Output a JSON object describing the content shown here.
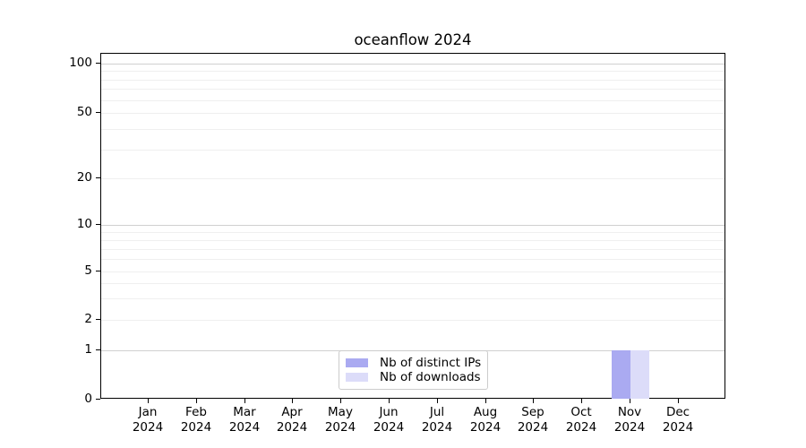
{
  "title": "oceanflow 2024",
  "colors": {
    "bar_distinct_ips": "#aaaaf1",
    "bar_downloads": "#dcdcf9",
    "grid_major": "#d0d0d0",
    "grid_minor": "#efefef",
    "spine": "#000000",
    "text": "#000000",
    "legend_border": "#cccccc"
  },
  "chart_data": {
    "type": "bar",
    "title": "oceanflow 2024",
    "categories": [
      "Jan 2024",
      "Feb 2024",
      "Mar 2024",
      "Apr 2024",
      "May 2024",
      "Jun 2024",
      "Jul 2024",
      "Aug 2024",
      "Sep 2024",
      "Oct 2024",
      "Nov 2024",
      "Dec 2024"
    ],
    "series": [
      {
        "name": "Nb of distinct IPs",
        "color": "#aaaaf1",
        "values": [
          0,
          0,
          0,
          0,
          0,
          0,
          0,
          0,
          0,
          0,
          1,
          0
        ]
      },
      {
        "name": "Nb of downloads",
        "color": "#dcdcf9",
        "values": [
          0,
          0,
          0,
          0,
          0,
          0,
          0,
          0,
          0,
          0,
          1,
          0
        ]
      }
    ],
    "xlabel": "",
    "ylabel": "",
    "yscale": "log-like (linear 0-1, compressed log decades above)",
    "yticks": [
      0,
      1,
      2,
      5,
      10,
      20,
      50,
      100
    ],
    "ylim": [
      0,
      115
    ],
    "grid": "horizontal major+minor",
    "legend_position": "lower center inside plot"
  },
  "legend": {
    "items": [
      {
        "label": "Nb of distinct IPs",
        "color": "#aaaaf1"
      },
      {
        "label": "Nb of downloads",
        "color": "#dcdcf9"
      }
    ]
  }
}
